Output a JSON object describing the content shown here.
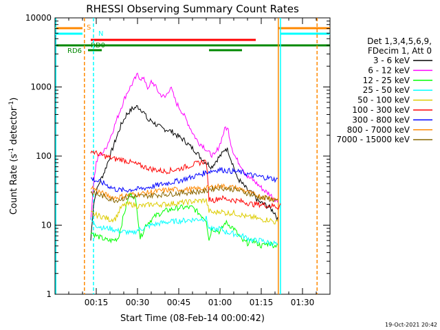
{
  "chart_data": {
    "type": "line",
    "title": "RHESSI Observing Summary Count Rates",
    "xlabel": "Start Time (08-Feb-14 00:00:42)",
    "ylabel_main": "Count Rate (s",
    "ylabel_sup1": "-1",
    "ylabel_mid": " detector",
    "ylabel_sup2": "-1",
    "ylabel_end": ")",
    "yscale": "log",
    "ylim": [
      1,
      10000
    ],
    "xlim_minutes": [
      0,
      100
    ],
    "x_ticks": [
      {
        "m": 15,
        "label": "00:15"
      },
      {
        "m": 30,
        "label": "00:30"
      },
      {
        "m": 45,
        "label": "00:45"
      },
      {
        "m": 60,
        "label": "01:00"
      },
      {
        "m": 75,
        "label": "01:15"
      },
      {
        "m": 90,
        "label": "01:30"
      }
    ],
    "y_ticks": [
      {
        "v": 1,
        "label": "1"
      },
      {
        "v": 10,
        "label": "10"
      },
      {
        "v": 100,
        "label": "100"
      },
      {
        "v": 1000,
        "label": "1000"
      },
      {
        "v": 10000,
        "label": "10000"
      }
    ],
    "legend_header": [
      "Det 1,3,4,5,6,9,",
      "FDecim 1, Att 0"
    ],
    "series": [
      {
        "name": "3 - 6 keV",
        "color": "#000000",
        "x": [
          13,
          14,
          15,
          16,
          18,
          20,
          22,
          24,
          26,
          28,
          30,
          32,
          34,
          35,
          37,
          39,
          41,
          43,
          45,
          47,
          49,
          51,
          53,
          55,
          57,
          59,
          61,
          62,
          63,
          64,
          65,
          66,
          68,
          70,
          72,
          74,
          76,
          78,
          80,
          81
        ],
        "y": [
          6,
          20,
          30,
          40,
          60,
          100,
          170,
          280,
          400,
          480,
          520,
          450,
          320,
          330,
          280,
          250,
          240,
          220,
          190,
          170,
          140,
          120,
          95,
          80,
          70,
          90,
          110,
          130,
          120,
          90,
          70,
          50,
          40,
          32,
          28,
          22,
          20,
          18,
          15,
          12
        ]
      },
      {
        "name": "6 - 12 keV",
        "color": "#ff00ff",
        "x": [
          13,
          14,
          15,
          16,
          18,
          20,
          22,
          24,
          26,
          28,
          30,
          31,
          32,
          33,
          34,
          35,
          36,
          38,
          40,
          42,
          44,
          46,
          48,
          50,
          52,
          54,
          56,
          58,
          60,
          61,
          62,
          63,
          64,
          65,
          66,
          68,
          70,
          72,
          74,
          76,
          78,
          80,
          81
        ],
        "y": [
          12,
          40,
          80,
          100,
          120,
          180,
          300,
          500,
          800,
          1100,
          1500,
          1350,
          1300,
          1200,
          900,
          1200,
          1100,
          800,
          700,
          1000,
          600,
          450,
          320,
          220,
          160,
          140,
          110,
          100,
          150,
          200,
          260,
          240,
          150,
          110,
          90,
          70,
          50,
          45,
          38,
          32,
          28,
          24,
          22
        ]
      },
      {
        "name": "12 - 25 keV",
        "color": "#00ff00",
        "x": [
          13,
          15,
          17,
          19,
          21,
          23,
          25,
          27,
          29,
          30,
          31,
          32,
          33,
          35,
          37,
          40,
          45,
          50,
          55,
          56,
          57,
          60,
          62,
          65,
          68,
          70,
          72,
          75,
          78,
          80,
          81
        ],
        "y": [
          8,
          7,
          6.5,
          6,
          6,
          6.5,
          14,
          28,
          26,
          15,
          6.5,
          8,
          10,
          12,
          14,
          16,
          18,
          18,
          12,
          6,
          9,
          8,
          11,
          9,
          6,
          5.5,
          6,
          5,
          5.5,
          5,
          5.5
        ]
      },
      {
        "name": "25 - 50 keV",
        "color": "#00ffff",
        "x": [
          13,
          15,
          18,
          20,
          22,
          24,
          26,
          28,
          30,
          32,
          35,
          40,
          45,
          50,
          55,
          56,
          58,
          60,
          62,
          65,
          68,
          70,
          72,
          75,
          78,
          80,
          81
        ],
        "y": [
          12,
          10,
          9,
          9,
          8.5,
          8,
          8,
          7.5,
          8.5,
          9,
          10,
          11,
          11.5,
          12,
          12.5,
          9,
          8.5,
          9,
          8,
          7.5,
          7,
          6.5,
          6,
          6,
          5.5,
          5.5,
          5
        ]
      },
      {
        "name": "50 - 100 keV",
        "color": "#ddcc00",
        "x": [
          13,
          15,
          18,
          20,
          22,
          24,
          26,
          28,
          30,
          32,
          35,
          40,
          45,
          50,
          55,
          56,
          58,
          60,
          62,
          65,
          68,
          70,
          72,
          75,
          78,
          80,
          81
        ],
        "y": [
          15,
          14,
          13,
          12,
          12.5,
          18,
          20,
          20,
          19,
          19,
          20,
          20,
          21,
          22,
          23,
          16,
          15,
          16,
          15,
          15,
          14,
          13,
          13,
          12,
          12,
          11,
          11
        ]
      },
      {
        "name": "100 - 300 keV",
        "color": "#ff0000",
        "x": [
          13,
          15,
          18,
          20,
          22,
          24,
          26,
          28,
          30,
          35,
          40,
          45,
          50,
          55,
          56,
          58,
          60,
          62,
          65,
          68,
          70,
          72,
          75,
          78,
          80,
          81,
          82
        ],
        "y": [
          120,
          110,
          100,
          95,
          90,
          90,
          85,
          80,
          75,
          65,
          60,
          65,
          75,
          85,
          24,
          23,
          25,
          24,
          23,
          22,
          21,
          20,
          20,
          19,
          19,
          18,
          20
        ]
      },
      {
        "name": "300 - 800 keV",
        "color": "#0000ff",
        "x": [
          13,
          15,
          18,
          20,
          22,
          24,
          26,
          28,
          30,
          35,
          40,
          45,
          50,
          55,
          56,
          58,
          60,
          62,
          65,
          68,
          70,
          72,
          75,
          78,
          80,
          81
        ],
        "y": [
          48,
          44,
          40,
          36,
          33,
          32,
          32,
          33,
          33,
          36,
          40,
          44,
          50,
          58,
          60,
          62,
          64,
          62,
          60,
          58,
          55,
          52,
          50,
          48,
          46,
          45
        ]
      },
      {
        "name": "800 - 7000 keV",
        "color": "#ff8800",
        "x": [
          13,
          15,
          18,
          20,
          22,
          24,
          26,
          28,
          30,
          35,
          40,
          45,
          50,
          55,
          56,
          58,
          60,
          62,
          65,
          68,
          70,
          72,
          75,
          78,
          80,
          81
        ],
        "y": [
          36,
          32,
          28,
          26,
          25,
          26,
          27,
          28,
          28,
          30,
          32,
          33,
          33,
          34,
          35,
          36,
          37,
          36,
          35,
          33,
          30,
          28,
          26,
          25,
          24,
          24
        ]
      },
      {
        "name": "7000 - 15000 keV",
        "color": "#886600",
        "x": [
          13,
          15,
          18,
          20,
          22,
          24,
          26,
          28,
          30,
          35,
          40,
          45,
          50,
          55,
          56,
          58,
          60,
          62,
          65,
          68,
          70,
          72,
          75,
          78,
          80,
          81
        ],
        "y": [
          30,
          28,
          26,
          24,
          23,
          24,
          25,
          26,
          26,
          27,
          28,
          29,
          30,
          31,
          33,
          34,
          35,
          34,
          33,
          31,
          29,
          27,
          25,
          24,
          23,
          22
        ]
      }
    ],
    "flag_labels": [
      {
        "text": "S",
        "color": "#ff8800"
      },
      {
        "text": "N",
        "color": "#00ffff"
      },
      {
        "text": "RD0",
        "color": "#008800"
      },
      {
        "text": "RD6",
        "color": "#008800"
      }
    ],
    "footer_date": "19-Oct-2021 20:42"
  }
}
